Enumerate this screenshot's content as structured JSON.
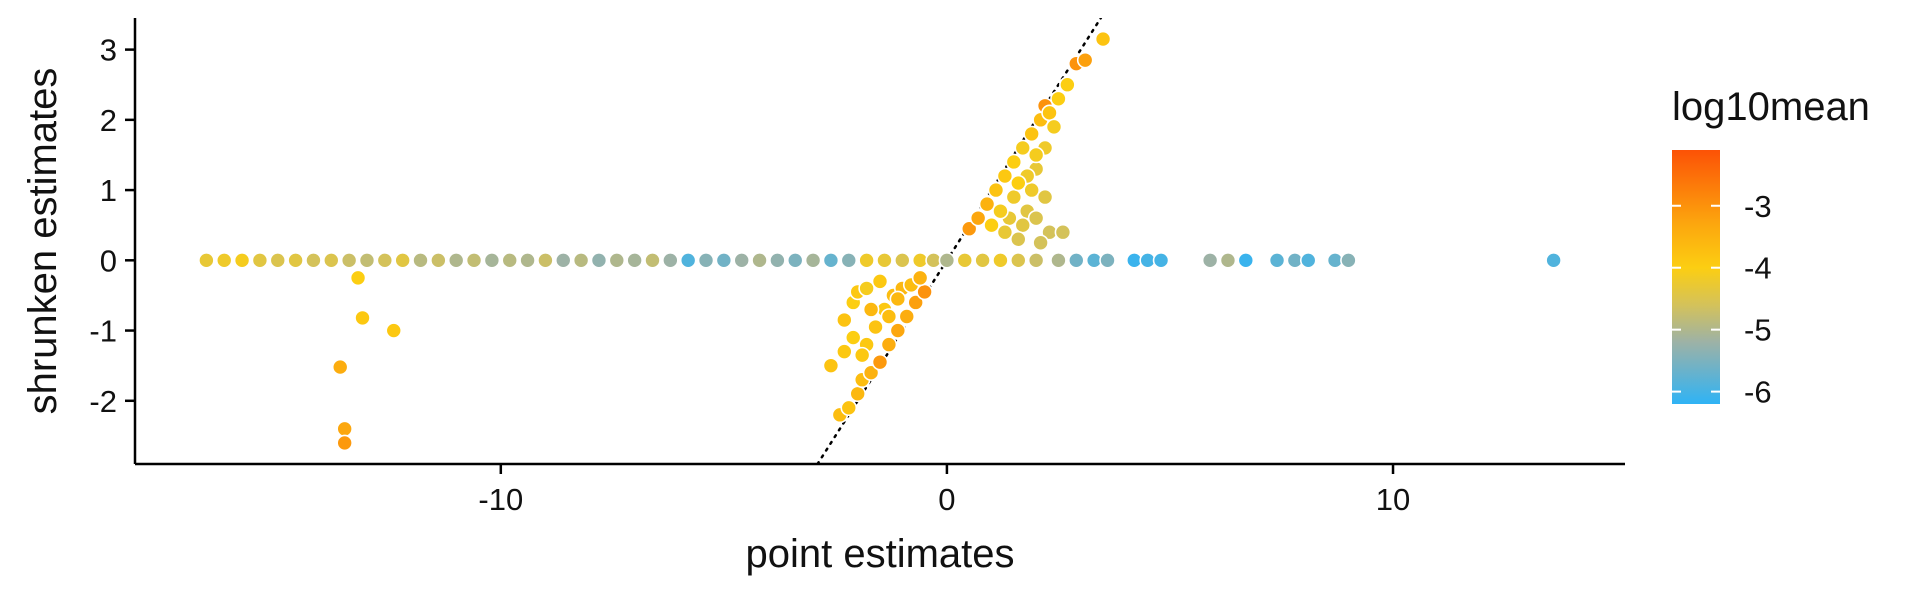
{
  "chart_data": {
    "type": "scatter",
    "title": "",
    "xlabel": "point estimates",
    "ylabel": "shrunken estimates",
    "xlim": [
      -18.2,
      15.2
    ],
    "ylim": [
      -2.9,
      3.45
    ],
    "xticks": [
      -10,
      0,
      10
    ],
    "xtick_labels": [
      "-10",
      "0",
      "10"
    ],
    "yticks": [
      -2,
      -1,
      0,
      1,
      2,
      3
    ],
    "ytick_labels": [
      "-2",
      "-1",
      "0",
      "1",
      "2",
      "3"
    ],
    "grid": false,
    "reference_line": {
      "type": "identity",
      "style": "dotted",
      "color": "#000000"
    },
    "legend": {
      "title": "log10mean",
      "placement": "right",
      "type": "colorbar",
      "range": [
        -6.2,
        -2.1
      ],
      "ticks": [
        -3,
        -4,
        -5,
        -6
      ],
      "tick_labels": [
        "-3",
        "-4",
        "-5",
        "-6"
      ],
      "colors": [
        {
          "value": -6.2,
          "color": "#2fb3f5"
        },
        {
          "value": -5.2,
          "color": "#9db2a6"
        },
        {
          "value": -4.6,
          "color": "#d4c25a"
        },
        {
          "value": -4.0,
          "color": "#fcce12"
        },
        {
          "value": -3.3,
          "color": "#fca70e"
        },
        {
          "value": -2.1,
          "color": "#fc5206"
        }
      ]
    },
    "point_style": {
      "stroke": "#ffffff"
    },
    "series": [
      {
        "points": [
          {
            "x": -16.6,
            "y": 0,
            "c": -4.3
          },
          {
            "x": -16.2,
            "y": 0,
            "c": -4.2
          },
          {
            "x": -15.8,
            "y": 0,
            "c": -4.1
          },
          {
            "x": -15.4,
            "y": 0,
            "c": -4.4
          },
          {
            "x": -15.0,
            "y": 0,
            "c": -4.5
          },
          {
            "x": -14.6,
            "y": 0,
            "c": -4.4
          },
          {
            "x": -14.2,
            "y": 0,
            "c": -4.6
          },
          {
            "x": -13.8,
            "y": 0,
            "c": -4.5
          },
          {
            "x": -13.4,
            "y": 0,
            "c": -4.7
          },
          {
            "x": -13.0,
            "y": 0,
            "c": -4.8
          },
          {
            "x": -12.6,
            "y": 0,
            "c": -4.6
          },
          {
            "x": -12.2,
            "y": 0,
            "c": -4.4
          },
          {
            "x": -11.8,
            "y": 0,
            "c": -4.9
          },
          {
            "x": -11.4,
            "y": 0,
            "c": -4.7
          },
          {
            "x": -11.0,
            "y": 0,
            "c": -5.0
          },
          {
            "x": -10.6,
            "y": 0,
            "c": -4.8
          },
          {
            "x": -10.2,
            "y": 0,
            "c": -5.1
          },
          {
            "x": -9.8,
            "y": 0,
            "c": -4.9
          },
          {
            "x": -9.4,
            "y": 0,
            "c": -5.0
          },
          {
            "x": -9.0,
            "y": 0,
            "c": -4.7
          },
          {
            "x": -8.6,
            "y": 0,
            "c": -5.2
          },
          {
            "x": -8.2,
            "y": 0,
            "c": -4.9
          },
          {
            "x": -7.8,
            "y": 0,
            "c": -5.3
          },
          {
            "x": -7.4,
            "y": 0,
            "c": -5.0
          },
          {
            "x": -7.0,
            "y": 0,
            "c": -5.1
          },
          {
            "x": -6.6,
            "y": 0,
            "c": -4.8
          },
          {
            "x": -6.2,
            "y": 0,
            "c": -5.2
          },
          {
            "x": -5.8,
            "y": 0,
            "c": -5.9
          },
          {
            "x": -5.4,
            "y": 0,
            "c": -5.4
          },
          {
            "x": -5.0,
            "y": 0,
            "c": -5.6
          },
          {
            "x": -4.6,
            "y": 0,
            "c": -5.2
          },
          {
            "x": -4.2,
            "y": 0,
            "c": -5.0
          },
          {
            "x": -3.8,
            "y": 0,
            "c": -5.3
          },
          {
            "x": -3.4,
            "y": 0,
            "c": -5.5
          },
          {
            "x": -3.0,
            "y": 0,
            "c": -5.1
          },
          {
            "x": -2.6,
            "y": 0,
            "c": -5.7
          },
          {
            "x": -2.2,
            "y": 0,
            "c": -5.4
          },
          {
            "x": -1.8,
            "y": 0,
            "c": -4.2
          },
          {
            "x": -1.4,
            "y": 0,
            "c": -4.3
          },
          {
            "x": -1.0,
            "y": 0,
            "c": -4.5
          },
          {
            "x": -0.6,
            "y": 0,
            "c": -4.2
          },
          {
            "x": -0.3,
            "y": 0,
            "c": -4.6
          },
          {
            "x": 0.0,
            "y": 0,
            "c": -5.0
          },
          {
            "x": 0.4,
            "y": 0,
            "c": -4.3
          },
          {
            "x": 0.8,
            "y": 0,
            "c": -4.4
          },
          {
            "x": 1.2,
            "y": 0,
            "c": -4.2
          },
          {
            "x": 1.6,
            "y": 0,
            "c": -4.5
          },
          {
            "x": 2.0,
            "y": 0,
            "c": -4.7
          },
          {
            "x": 2.5,
            "y": 0,
            "c": -5.0
          },
          {
            "x": 2.9,
            "y": 0,
            "c": -5.6
          },
          {
            "x": 3.3,
            "y": 0,
            "c": -5.8
          },
          {
            "x": 3.6,
            "y": 0,
            "c": -5.5
          },
          {
            "x": 4.2,
            "y": 0,
            "c": -6.1
          },
          {
            "x": 4.5,
            "y": 0,
            "c": -6.0
          },
          {
            "x": 4.8,
            "y": 0,
            "c": -6.0
          },
          {
            "x": 5.9,
            "y": 0,
            "c": -5.2
          },
          {
            "x": 6.3,
            "y": 0,
            "c": -5.0
          },
          {
            "x": 6.7,
            "y": 0,
            "c": -6.1
          },
          {
            "x": 7.4,
            "y": 0,
            "c": -5.8
          },
          {
            "x": 7.8,
            "y": 0,
            "c": -5.6
          },
          {
            "x": 8.1,
            "y": 0,
            "c": -5.9
          },
          {
            "x": 8.7,
            "y": 0,
            "c": -5.7
          },
          {
            "x": 9.0,
            "y": 0,
            "c": -5.4
          },
          {
            "x": 13.6,
            "y": 0,
            "c": -5.9
          },
          {
            "x": -13.2,
            "y": -0.25,
            "c": -4.0
          },
          {
            "x": -13.1,
            "y": -0.82,
            "c": -3.9
          },
          {
            "x": -12.4,
            "y": -1.0,
            "c": -3.9
          },
          {
            "x": -13.6,
            "y": -1.52,
            "c": -3.4
          },
          {
            "x": -13.5,
            "y": -2.4,
            "c": -3.3
          },
          {
            "x": -13.5,
            "y": -2.6,
            "c": -3.1
          },
          {
            "x": -2.4,
            "y": -2.2,
            "c": -3.7
          },
          {
            "x": -2.2,
            "y": -2.1,
            "c": -3.8
          },
          {
            "x": -2.0,
            "y": -1.9,
            "c": -3.6
          },
          {
            "x": -1.9,
            "y": -1.7,
            "c": -3.7
          },
          {
            "x": -1.7,
            "y": -1.6,
            "c": -3.5
          },
          {
            "x": -1.5,
            "y": -1.45,
            "c": -3.1
          },
          {
            "x": -1.3,
            "y": -1.2,
            "c": -3.4
          },
          {
            "x": -1.1,
            "y": -1.0,
            "c": -3.3
          },
          {
            "x": -0.9,
            "y": -0.8,
            "c": -3.4
          },
          {
            "x": -0.7,
            "y": -0.6,
            "c": -3.2
          },
          {
            "x": -0.5,
            "y": -0.45,
            "c": -3.0
          },
          {
            "x": -2.6,
            "y": -1.5,
            "c": -3.8
          },
          {
            "x": -2.3,
            "y": -1.3,
            "c": -3.9
          },
          {
            "x": -2.1,
            "y": -1.1,
            "c": -4.0
          },
          {
            "x": -1.8,
            "y": -1.2,
            "c": -3.9
          },
          {
            "x": -1.6,
            "y": -0.95,
            "c": -3.8
          },
          {
            "x": -1.4,
            "y": -0.7,
            "c": -3.9
          },
          {
            "x": -1.2,
            "y": -0.5,
            "c": -3.7
          },
          {
            "x": -1.0,
            "y": -0.4,
            "c": -3.6
          },
          {
            "x": -2.3,
            "y": -0.85,
            "c": -3.8
          },
          {
            "x": -2.1,
            "y": -0.6,
            "c": -4.0
          },
          {
            "x": -2.0,
            "y": -0.45,
            "c": -3.9
          },
          {
            "x": -1.8,
            "y": -0.4,
            "c": -4.1
          },
          {
            "x": -1.5,
            "y": -0.3,
            "c": -3.9
          },
          {
            "x": -1.7,
            "y": -0.7,
            "c": -3.6
          },
          {
            "x": -1.3,
            "y": -0.8,
            "c": -3.7
          },
          {
            "x": -1.1,
            "y": -0.55,
            "c": -3.6
          },
          {
            "x": -0.8,
            "y": -0.35,
            "c": -3.7
          },
          {
            "x": -0.6,
            "y": -0.25,
            "c": -3.5
          },
          {
            "x": -1.9,
            "y": -1.35,
            "c": -3.9
          },
          {
            "x": 0.5,
            "y": 0.45,
            "c": -3.1
          },
          {
            "x": 0.7,
            "y": 0.6,
            "c": -3.3
          },
          {
            "x": 0.9,
            "y": 0.8,
            "c": -3.5
          },
          {
            "x": 1.1,
            "y": 1.0,
            "c": -3.8
          },
          {
            "x": 1.3,
            "y": 1.2,
            "c": -3.9
          },
          {
            "x": 1.5,
            "y": 1.4,
            "c": -4.0
          },
          {
            "x": 1.7,
            "y": 1.6,
            "c": -4.1
          },
          {
            "x": 1.9,
            "y": 1.8,
            "c": -3.8
          },
          {
            "x": 2.1,
            "y": 2.0,
            "c": -3.7
          },
          {
            "x": 2.2,
            "y": 2.2,
            "c": -3.0
          },
          {
            "x": 2.3,
            "y": 2.1,
            "c": -3.8
          },
          {
            "x": 2.5,
            "y": 2.3,
            "c": -4.0
          },
          {
            "x": 2.7,
            "y": 2.5,
            "c": -4.0
          },
          {
            "x": 2.9,
            "y": 2.8,
            "c": -3.0
          },
          {
            "x": 3.1,
            "y": 2.85,
            "c": -3.2
          },
          {
            "x": 3.5,
            "y": 3.15,
            "c": -3.8
          },
          {
            "x": 2.4,
            "y": 1.9,
            "c": -4.1
          },
          {
            "x": 2.2,
            "y": 1.6,
            "c": -4.2
          },
          {
            "x": 2.0,
            "y": 1.3,
            "c": -4.3
          },
          {
            "x": 1.9,
            "y": 1.0,
            "c": -4.2
          },
          {
            "x": 1.8,
            "y": 0.7,
            "c": -4.4
          },
          {
            "x": 1.7,
            "y": 0.5,
            "c": -4.4
          },
          {
            "x": 2.0,
            "y": 0.6,
            "c": -4.5
          },
          {
            "x": 2.3,
            "y": 0.4,
            "c": -4.6
          },
          {
            "x": 2.6,
            "y": 0.4,
            "c": -4.6
          },
          {
            "x": 1.5,
            "y": 0.9,
            "c": -4.2
          },
          {
            "x": 1.4,
            "y": 0.6,
            "c": -4.3
          },
          {
            "x": 1.2,
            "y": 0.7,
            "c": -4.1
          },
          {
            "x": 1.0,
            "y": 0.5,
            "c": -4.0
          },
          {
            "x": 1.3,
            "y": 0.4,
            "c": -4.3
          },
          {
            "x": 1.6,
            "y": 0.3,
            "c": -4.5
          },
          {
            "x": 2.1,
            "y": 0.25,
            "c": -4.6
          },
          {
            "x": 1.8,
            "y": 1.2,
            "c": -4.2
          },
          {
            "x": 2.2,
            "y": 0.9,
            "c": -4.4
          },
          {
            "x": 2.0,
            "y": 1.5,
            "c": -4.1
          },
          {
            "x": 1.6,
            "y": 1.1,
            "c": -4.0
          }
        ]
      }
    ]
  }
}
